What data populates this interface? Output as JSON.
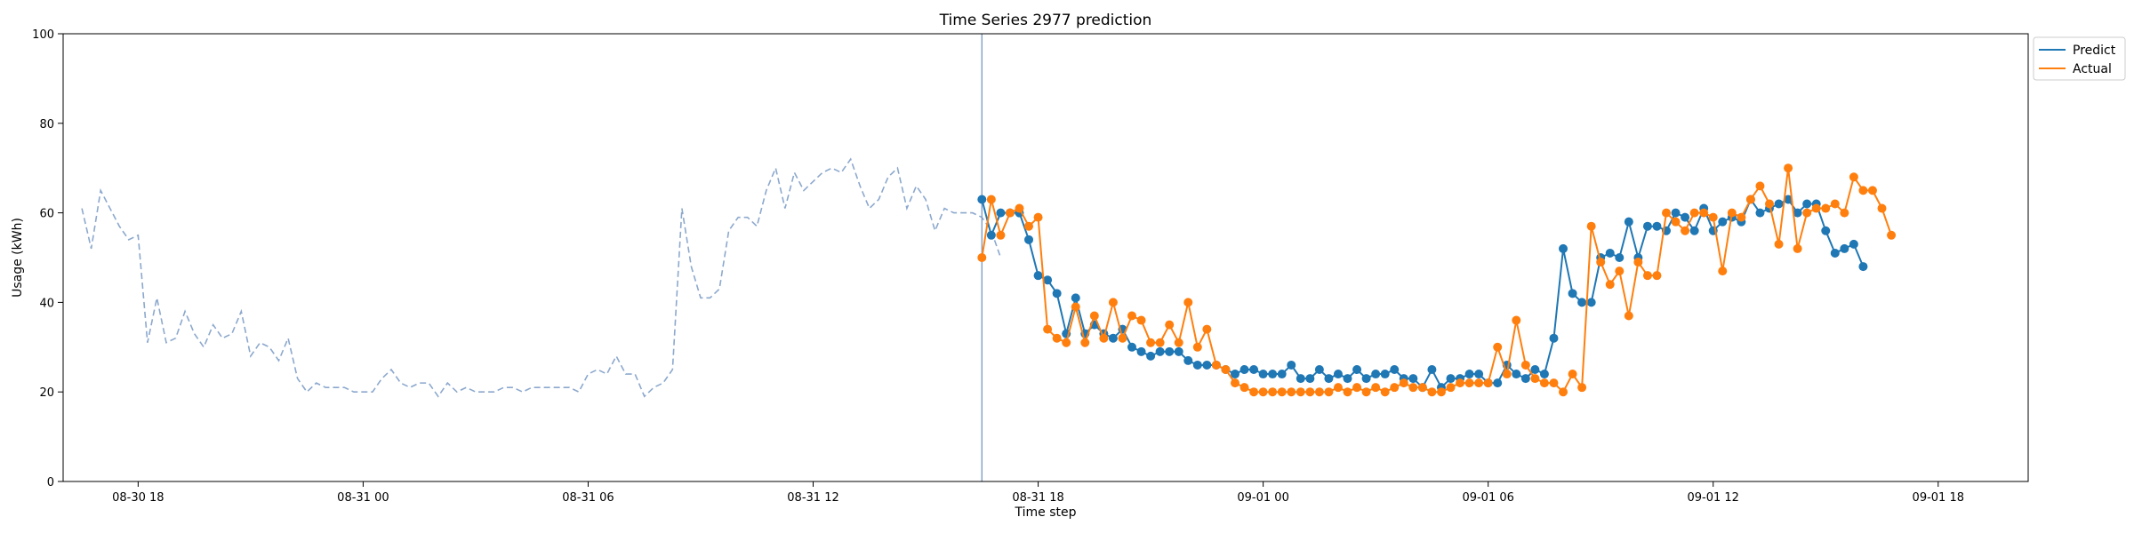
{
  "chart_data": {
    "type": "line",
    "title": "Time Series 2977 prediction",
    "xlabel": "Time step",
    "ylabel": "Usage (kWh)",
    "ylim": [
      0,
      100
    ],
    "yticks": [
      0,
      20,
      40,
      60,
      80,
      100
    ],
    "xlim_hours": [
      -8.0,
      44.4
    ],
    "xticks": [
      {
        "label": "08-30 18",
        "hours": -6
      },
      {
        "label": "08-31 00",
        "hours": 0
      },
      {
        "label": "08-31 06",
        "hours": 6
      },
      {
        "label": "08-31 12",
        "hours": 12
      },
      {
        "label": "08-31 18",
        "hours": 18
      },
      {
        "label": "09-01 00",
        "hours": 24
      },
      {
        "label": "09-01 06",
        "hours": 30
      },
      {
        "label": "09-01 12",
        "hours": 36
      },
      {
        "label": "09-01 18",
        "hours": 42
      }
    ],
    "x_start": "08-30 16:30",
    "x_step_minutes": 15,
    "split_time": "08-31 16:30",
    "legend_position": "top-right",
    "history": [
      61,
      52,
      65,
      61,
      57,
      54,
      55,
      31,
      41,
      31,
      32,
      38,
      33,
      30,
      35,
      32,
      33,
      38,
      28,
      31,
      30,
      27,
      32,
      23,
      20,
      22,
      21,
      21,
      21,
      20,
      20,
      20,
      23,
      25,
      22,
      21,
      22,
      22,
      19,
      22,
      20,
      21,
      20,
      20,
      20,
      21,
      21,
      20,
      21,
      21,
      21,
      21,
      21,
      20,
      24,
      25,
      24,
      28,
      24,
      24,
      19,
      21,
      22,
      25,
      61,
      48,
      41,
      41,
      43,
      56,
      59,
      59,
      57,
      65,
      70,
      61,
      69,
      65,
      67,
      69,
      70,
      69,
      72,
      66,
      61,
      63,
      68,
      70,
      61,
      66,
      63,
      56,
      61,
      60,
      60,
      60,
      59,
      56,
      50
    ],
    "series": [
      {
        "name": "Predict",
        "color": "#1f77b4",
        "values": [
          63,
          55,
          60,
          60,
          60,
          54,
          46,
          45,
          42,
          33,
          41,
          33,
          35,
          33,
          32,
          34,
          30,
          29,
          28,
          29,
          29,
          29,
          27,
          26,
          26,
          26,
          25,
          24,
          25,
          25,
          24,
          24,
          24,
          26,
          23,
          23,
          25,
          23,
          24,
          23,
          25,
          23,
          24,
          24,
          25,
          23,
          23,
          21,
          25,
          21,
          23,
          23,
          24,
          24,
          22,
          22,
          26,
          24,
          23,
          25,
          24,
          32,
          52,
          42,
          40,
          40,
          50,
          51,
          50,
          58,
          50,
          57,
          57,
          56,
          60,
          59,
          56,
          61,
          56,
          58,
          59,
          58,
          63,
          60,
          61,
          62,
          63,
          60,
          62,
          62,
          56,
          51,
          52,
          53,
          48
        ]
      },
      {
        "name": "Actual",
        "color": "#ff7f0e",
        "values": [
          50,
          63,
          55,
          60,
          61,
          57,
          59,
          34,
          32,
          31,
          39,
          31,
          37,
          32,
          40,
          32,
          37,
          36,
          31,
          31,
          35,
          31,
          40,
          30,
          34,
          26,
          25,
          22,
          21,
          20,
          20,
          20,
          20,
          20,
          20,
          20,
          20,
          20,
          21,
          20,
          21,
          20,
          21,
          20,
          21,
          22,
          21,
          21,
          20,
          20,
          21,
          22,
          22,
          22,
          22,
          30,
          24,
          36,
          26,
          23,
          22,
          22,
          20,
          24,
          21,
          57,
          49,
          44,
          47,
          37,
          49,
          46,
          46,
          60,
          58,
          56,
          60,
          60,
          59,
          47,
          60,
          59,
          63,
          66,
          62,
          53,
          70,
          52,
          60,
          61,
          61,
          62,
          60,
          68,
          65,
          65,
          61,
          55
        ]
      }
    ]
  }
}
